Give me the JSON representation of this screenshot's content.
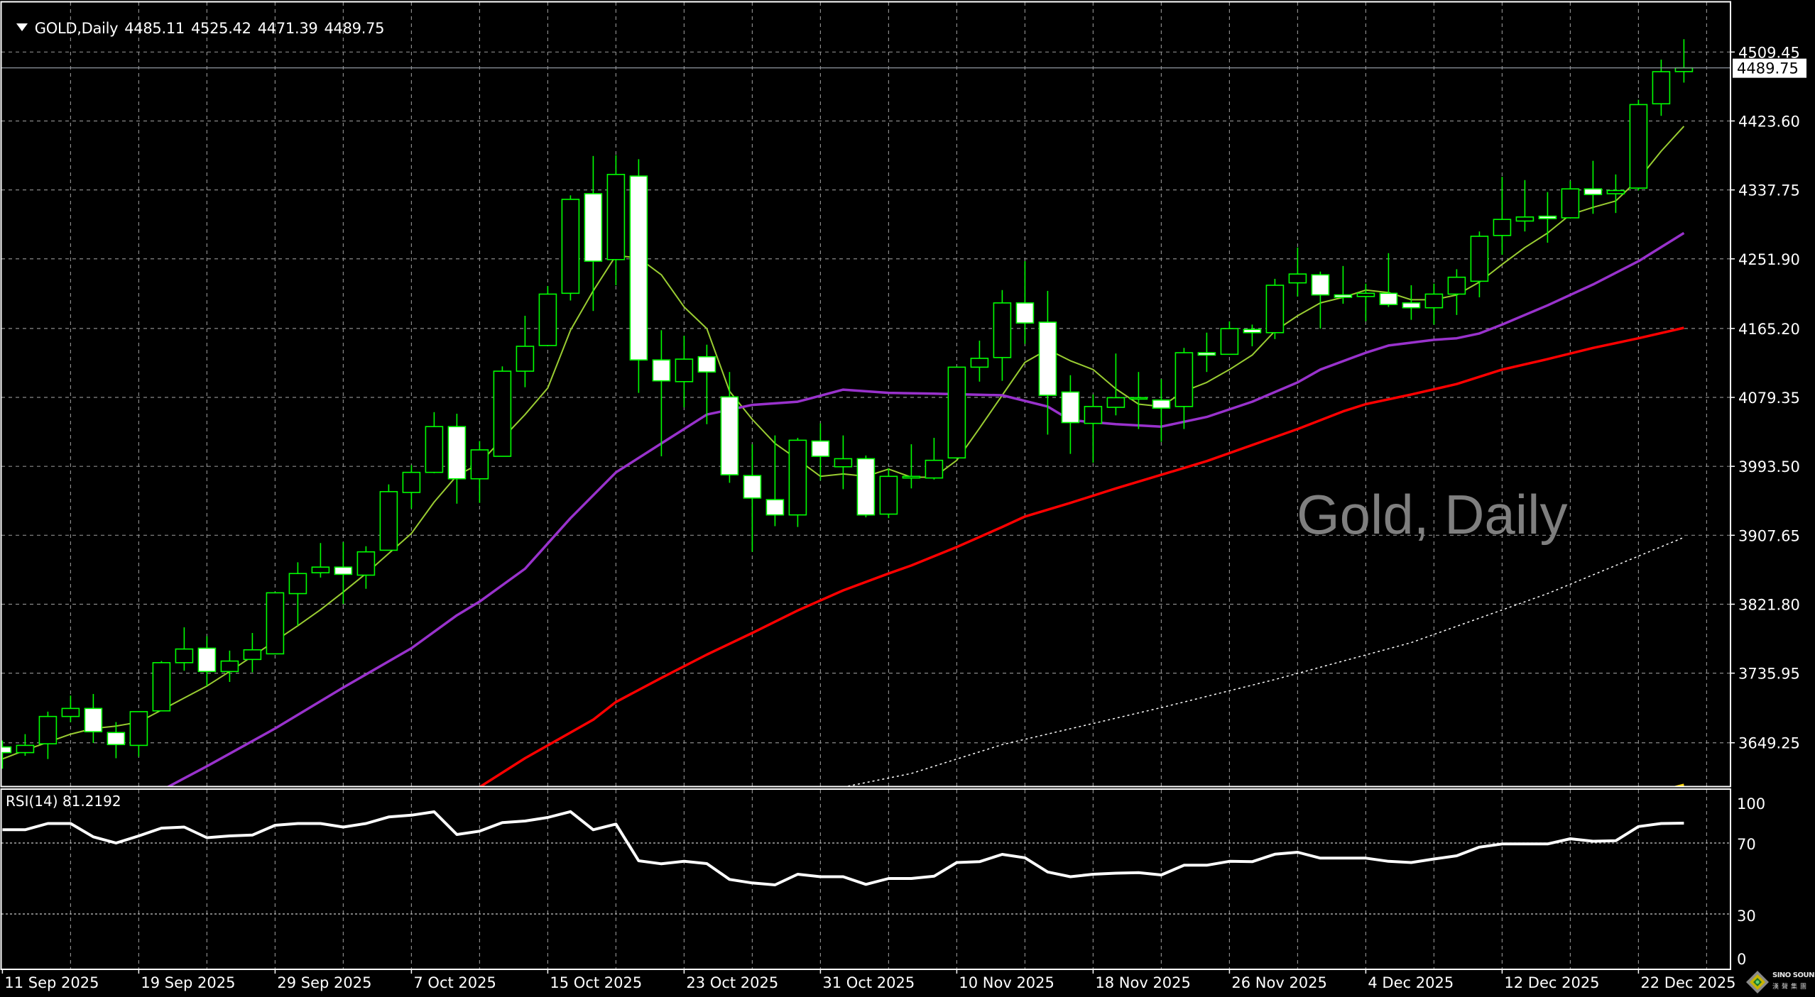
{
  "header": {
    "symbol": "GOLD,Daily",
    "open": "4485.11",
    "high": "4525.42",
    "low": "4471.39",
    "close": "4489.75",
    "menu_icon": "triangle-down-icon"
  },
  "watermark": "Gold, Daily",
  "rsi_label": "RSI(14) 81.2192",
  "current_price_label": "4489.75",
  "logo": {
    "name": "SINO SOUND",
    "chinese": "漢聲集團"
  },
  "colors": {
    "background": "#000000",
    "candle_outline": "#00ff00",
    "bull_fill": "#000000",
    "bear_fill": "#ffffff",
    "ma_fast": "#9acd32",
    "ma_mid": "#9932cc",
    "ma_slow": "#ff0000",
    "ma_long": "#ffffff",
    "ma_extra": "#ffd700",
    "rsi": "#ffffff",
    "grid": "#8a8a8a",
    "watermark": "#7f7f7f"
  },
  "chart_data": {
    "type": "candlestick",
    "title": "GOLD,Daily",
    "ylim": [
      3595.1,
      4571.6
    ],
    "grid": true,
    "price_ticks": [
      "4509.45",
      "4423.60",
      "4337.75",
      "4251.90",
      "4165.20",
      "4079.35",
      "3993.50",
      "3907.65",
      "3821.80",
      "3735.95",
      "3649.25"
    ],
    "current_price": 4489.75,
    "x_ticks": [
      {
        "bar": 0,
        "label": "11 Sep 2025"
      },
      {
        "bar": 6,
        "label": "19 Sep 2025"
      },
      {
        "bar": 12,
        "label": "29 Sep 2025"
      },
      {
        "bar": 18,
        "label": "7 Oct 2025"
      },
      {
        "bar": 24,
        "label": "15 Oct 2025"
      },
      {
        "bar": 30,
        "label": "23 Oct 2025"
      },
      {
        "bar": 36,
        "label": "31 Oct 2025"
      },
      {
        "bar": 42,
        "label": "10 Nov 2025"
      },
      {
        "bar": 48,
        "label": "18 Nov 2025"
      },
      {
        "bar": 54,
        "label": "26 Nov 2025"
      },
      {
        "bar": 60,
        "label": "4 Dec 2025"
      },
      {
        "bar": 66,
        "label": "12 Dec 2025"
      },
      {
        "bar": 72,
        "label": "22 Dec 2025"
      }
    ],
    "ohlc": [
      [
        3644,
        3652,
        3617,
        3637
      ],
      [
        3637,
        3660,
        3633,
        3646
      ],
      [
        3648,
        3688,
        3629,
        3682
      ],
      [
        3682,
        3708,
        3675,
        3692
      ],
      [
        3692,
        3710,
        3649,
        3663
      ],
      [
        3662,
        3675,
        3630,
        3647
      ],
      [
        3646,
        3688,
        3632,
        3688
      ],
      [
        3689,
        3751,
        3689,
        3749
      ],
      [
        3749,
        3793,
        3739,
        3766
      ],
      [
        3767,
        3782,
        3720,
        3738
      ],
      [
        3738,
        3764,
        3725,
        3751
      ],
      [
        3753,
        3786,
        3737,
        3765
      ],
      [
        3760,
        3836,
        3760,
        3836
      ],
      [
        3835,
        3874,
        3795,
        3860
      ],
      [
        3861,
        3898,
        3855,
        3868
      ],
      [
        3868,
        3899,
        3822,
        3859
      ],
      [
        3858,
        3894,
        3841,
        3887
      ],
      [
        3889,
        3971,
        3889,
        3962
      ],
      [
        3961,
        3995,
        3941,
        3986
      ],
      [
        3986,
        4061,
        3985,
        4043
      ],
      [
        4043,
        4059,
        3947,
        3978
      ],
      [
        3978,
        4025,
        3948,
        4014
      ],
      [
        4006,
        4118,
        4006,
        4112
      ],
      [
        4112,
        4181,
        4092,
        4143
      ],
      [
        4144,
        4218,
        4144,
        4208
      ],
      [
        4209,
        4331,
        4200,
        4326
      ],
      [
        4333,
        4380,
        4187,
        4249
      ],
      [
        4251,
        4381,
        4219,
        4357
      ],
      [
        4355,
        4376,
        4085,
        4126
      ],
      [
        4126,
        4163,
        4006,
        4100
      ],
      [
        4099,
        4156,
        4067,
        4127
      ],
      [
        4130,
        4145,
        4046,
        4111
      ],
      [
        4080,
        4111,
        3973,
        3983
      ],
      [
        3982,
        4021,
        3887,
        3954
      ],
      [
        3952,
        4032,
        3919,
        3933
      ],
      [
        3933,
        4029,
        3918,
        4026
      ],
      [
        4025,
        4047,
        3976,
        4006
      ],
      [
        3993,
        4032,
        3965,
        4003
      ],
      [
        4003,
        4007,
        3930,
        3933
      ],
      [
        3934,
        3991,
        3929,
        3981
      ],
      [
        3979,
        4021,
        3966,
        3981
      ],
      [
        3979,
        4029,
        3977,
        4001
      ],
      [
        4004,
        4117,
        4004,
        4117
      ],
      [
        4117,
        4150,
        4099,
        4128
      ],
      [
        4129,
        4213,
        4100,
        4197
      ],
      [
        4197,
        4249,
        4146,
        4172
      ],
      [
        4173,
        4212,
        4033,
        4082
      ],
      [
        4086,
        4107,
        4009,
        4048
      ],
      [
        4047,
        4083,
        3998,
        4068
      ],
      [
        4067,
        4134,
        4057,
        4079
      ],
      [
        4078,
        4111,
        4040,
        4079
      ],
      [
        4076,
        4102,
        4024,
        4066
      ],
      [
        4068,
        4141,
        4040,
        4135
      ],
      [
        4135,
        4160,
        4111,
        4132
      ],
      [
        4133,
        4174,
        4133,
        4165
      ],
      [
        4164,
        4170,
        4143,
        4160
      ],
      [
        4160,
        4227,
        4152,
        4219
      ],
      [
        4222,
        4266,
        4205,
        4233
      ],
      [
        4232,
        4236,
        4165,
        4207
      ],
      [
        4207,
        4243,
        4196,
        4204
      ],
      [
        4205,
        4221,
        4174,
        4209
      ],
      [
        4209,
        4259,
        4192,
        4195
      ],
      [
        4197,
        4219,
        4176,
        4191
      ],
      [
        4191,
        4221,
        4170,
        4208
      ],
      [
        4208,
        4239,
        4182,
        4229
      ],
      [
        4224,
        4286,
        4204,
        4280
      ],
      [
        4281,
        4354,
        4257,
        4301
      ],
      [
        4299,
        4350,
        4286,
        4304
      ],
      [
        4305,
        4335,
        4272,
        4302
      ],
      [
        4303,
        4349,
        4303,
        4339
      ],
      [
        4339,
        4374,
        4308,
        4332
      ],
      [
        4333,
        4357,
        4309,
        4337
      ],
      [
        4340,
        4450,
        4337,
        4444
      ],
      [
        4445,
        4500,
        4430,
        4485
      ],
      [
        4485.11,
        4525.42,
        4471.39,
        4489.75
      ]
    ],
    "moving_averages": [
      {
        "color_key": "ma_fast",
        "dotted": false,
        "points": [
          [
            0,
            3629
          ],
          [
            1,
            3640
          ],
          [
            2,
            3650
          ],
          [
            3,
            3660
          ],
          [
            4,
            3667
          ],
          [
            5,
            3670
          ],
          [
            6,
            3675
          ],
          [
            7,
            3690
          ],
          [
            8,
            3705
          ],
          [
            9,
            3720
          ],
          [
            10,
            3738
          ],
          [
            11,
            3757
          ],
          [
            12,
            3776
          ],
          [
            13,
            3795
          ],
          [
            14,
            3815
          ],
          [
            15,
            3837
          ],
          [
            16,
            3860
          ],
          [
            17,
            3885
          ],
          [
            18,
            3910
          ],
          [
            19,
            3949
          ],
          [
            20,
            3982
          ],
          [
            21,
            3997
          ],
          [
            22,
            4028
          ],
          [
            23,
            4058
          ],
          [
            24,
            4091
          ],
          [
            25,
            4163
          ],
          [
            26,
            4212
          ],
          [
            27,
            4256
          ],
          [
            28,
            4253
          ],
          [
            29,
            4232
          ],
          [
            30,
            4192
          ],
          [
            31,
            4165
          ],
          [
            32,
            4087
          ],
          [
            33,
            4052
          ],
          [
            34,
            4022
          ],
          [
            35,
            4002
          ],
          [
            36,
            3981
          ],
          [
            37,
            3984
          ],
          [
            38,
            3981
          ],
          [
            39,
            3990
          ],
          [
            40,
            3980
          ],
          [
            41,
            3980
          ],
          [
            42,
            4001
          ],
          [
            43,
            4041
          ],
          [
            44,
            4082
          ],
          [
            45,
            4123
          ],
          [
            46,
            4139
          ],
          [
            47,
            4125
          ],
          [
            48,
            4114
          ],
          [
            49,
            4090
          ],
          [
            50,
            4071
          ],
          [
            51,
            4068
          ],
          [
            52,
            4087
          ],
          [
            53,
            4098
          ],
          [
            54,
            4114
          ],
          [
            55,
            4132
          ],
          [
            56,
            4162
          ],
          [
            57,
            4181
          ],
          [
            58,
            4197
          ],
          [
            59,
            4204
          ],
          [
            60,
            4213
          ],
          [
            61,
            4210
          ],
          [
            62,
            4201
          ],
          [
            63,
            4201
          ],
          [
            64,
            4207
          ],
          [
            65,
            4223
          ],
          [
            66,
            4245
          ],
          [
            67,
            4266
          ],
          [
            68,
            4284
          ],
          [
            69,
            4307
          ],
          [
            70,
            4316
          ],
          [
            71,
            4324
          ],
          [
            72,
            4351
          ],
          [
            73,
            4386
          ],
          [
            74,
            4417
          ]
        ]
      },
      {
        "color_key": "ma_mid",
        "dotted": false,
        "points": [
          [
            7,
            3590
          ],
          [
            9,
            3620
          ],
          [
            12,
            3667
          ],
          [
            15,
            3718
          ],
          [
            18,
            3767
          ],
          [
            20,
            3808
          ],
          [
            21,
            3825
          ],
          [
            23,
            3866
          ],
          [
            25,
            3929
          ],
          [
            27,
            3986
          ],
          [
            29,
            4022
          ],
          [
            31,
            4058
          ],
          [
            33,
            4070
          ],
          [
            35,
            4074
          ],
          [
            37,
            4089
          ],
          [
            39,
            4085
          ],
          [
            41,
            4084
          ],
          [
            44,
            4082
          ],
          [
            46,
            4068
          ],
          [
            47,
            4051
          ],
          [
            49,
            4046
          ],
          [
            51,
            4043
          ],
          [
            53,
            4055
          ],
          [
            55,
            4074
          ],
          [
            57,
            4098
          ],
          [
            58,
            4114
          ],
          [
            60,
            4135
          ],
          [
            61,
            4144
          ],
          [
            63,
            4151
          ],
          [
            64,
            4153
          ],
          [
            65,
            4159
          ],
          [
            66,
            4170
          ],
          [
            68,
            4194
          ],
          [
            70,
            4220
          ],
          [
            72,
            4249
          ],
          [
            74,
            4284
          ]
        ]
      },
      {
        "color_key": "ma_slow",
        "dotted": false,
        "points": [
          [
            21,
            3594
          ],
          [
            23,
            3630
          ],
          [
            26,
            3678
          ],
          [
            27,
            3700
          ],
          [
            29,
            3730
          ],
          [
            31,
            3759
          ],
          [
            33,
            3786
          ],
          [
            35,
            3814
          ],
          [
            37,
            3839
          ],
          [
            39,
            3860
          ],
          [
            40,
            3870
          ],
          [
            42,
            3893
          ],
          [
            44,
            3918
          ],
          [
            45,
            3931
          ],
          [
            47,
            3948
          ],
          [
            49,
            3966
          ],
          [
            51,
            3983
          ],
          [
            53,
            4000
          ],
          [
            55,
            4020
          ],
          [
            57,
            4040
          ],
          [
            59,
            4062
          ],
          [
            60,
            4071
          ],
          [
            62,
            4083
          ],
          [
            64,
            4096
          ],
          [
            66,
            4114
          ],
          [
            68,
            4127
          ],
          [
            70,
            4141
          ],
          [
            72,
            4153
          ],
          [
            74,
            4166
          ]
        ]
      },
      {
        "color_key": "ma_long",
        "dotted": true,
        "points": [
          [
            37,
            3594
          ],
          [
            40,
            3611
          ],
          [
            44,
            3647
          ],
          [
            51,
            3693
          ],
          [
            56,
            3728
          ],
          [
            62,
            3774
          ],
          [
            68,
            3835
          ],
          [
            74,
            3905
          ]
        ]
      },
      {
        "color_key": "ma_extra",
        "dotted": false,
        "points": [
          [
            73,
            3590
          ],
          [
            74,
            3597
          ]
        ]
      }
    ],
    "rsi": {
      "period": 14,
      "ylim": [
        0,
        100
      ],
      "levels": [
        70,
        30
      ],
      "ticks": [
        "100",
        "70",
        "30",
        "0"
      ],
      "values": [
        77.5,
        77.5,
        81,
        81,
        73.5,
        70,
        74,
        78.4,
        79,
        73,
        74,
        74.5,
        80,
        81,
        81,
        79,
        81,
        84.7,
        85.7,
        87.6,
        74.8,
        76.7,
        81.5,
        82.4,
        84.4,
        87.7,
        77.5,
        80.7,
        60,
        58.3,
        59.7,
        58.4,
        49.5,
        47.5,
        46.4,
        52.4,
        51,
        51,
        46.7,
        50,
        50,
        51.3,
        59,
        59.5,
        63.6,
        61.7,
        53.7,
        51,
        52.4,
        53,
        53.3,
        52,
        57.5,
        57.5,
        59.7,
        59.5,
        63.7,
        64.8,
        61.5,
        61.5,
        61.5,
        59.7,
        59,
        61,
        62.8,
        67.7,
        69.5,
        69.5,
        69.5,
        72.4,
        71,
        71.3,
        79.3,
        81,
        81.2192
      ]
    }
  }
}
